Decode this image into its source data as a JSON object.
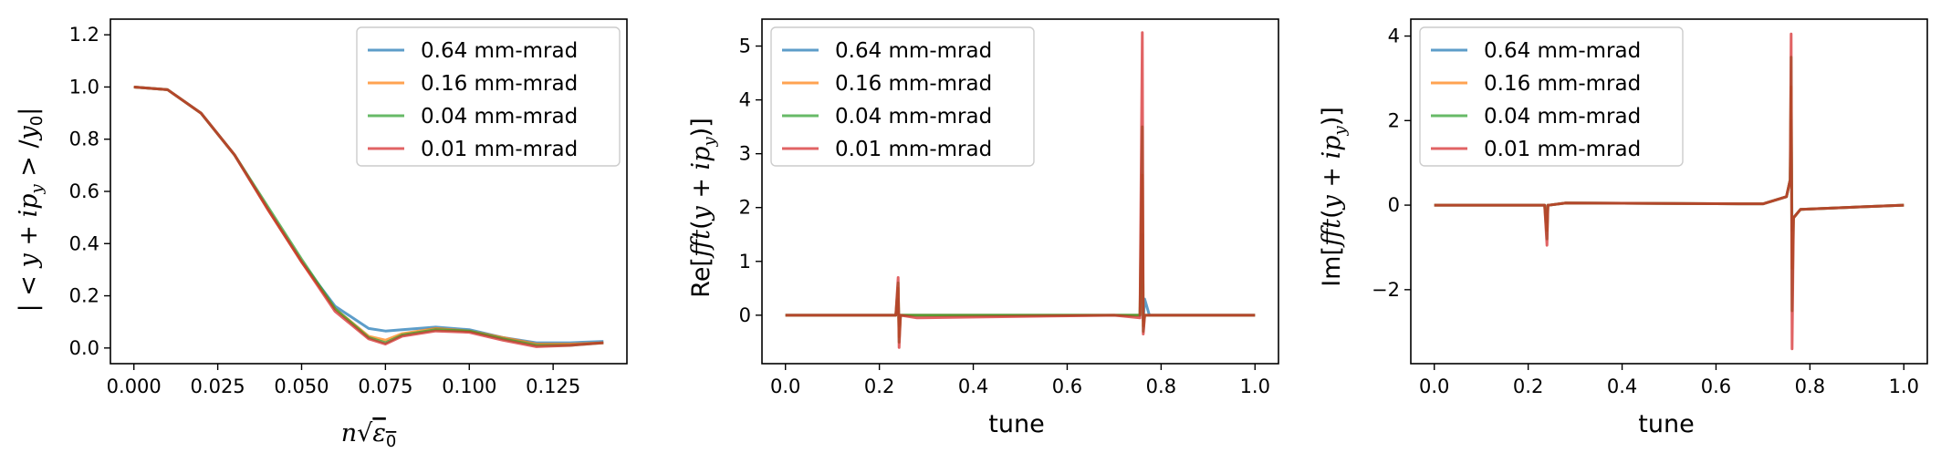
{
  "colors": {
    "blue": "#1f77b4",
    "orange": "#ff7f0e",
    "green": "#2ca02c",
    "red": "#d62728"
  },
  "chart_data": [
    {
      "type": "line",
      "xlabel": "n√ε0",
      "ylabel": "|<y + ipy>/y0|",
      "xlim": [
        -0.007,
        0.147
      ],
      "ylim": [
        -0.06,
        1.26
      ],
      "xticks": [
        0.0,
        0.025,
        0.05,
        0.075,
        0.1,
        0.125
      ],
      "xtick_labels": [
        "0.000",
        "0.025",
        "0.050",
        "0.075",
        "0.100",
        "0.125"
      ],
      "yticks": [
        0.0,
        0.2,
        0.4,
        0.6,
        0.8,
        1.0,
        1.2
      ],
      "ytick_labels": [
        "0.0",
        "0.2",
        "0.4",
        "0.6",
        "0.8",
        "1.0",
        "1.2"
      ],
      "legend_position": "top-right",
      "series": [
        {
          "name": "0.64 mm-mrad",
          "color": "#1f77b4",
          "x": [
            0.0,
            0.01,
            0.02,
            0.03,
            0.04,
            0.05,
            0.06,
            0.07,
            0.075,
            0.08,
            0.09,
            0.1,
            0.11,
            0.12,
            0.13,
            0.14
          ],
          "y": [
            1.0,
            0.99,
            0.9,
            0.74,
            0.53,
            0.33,
            0.16,
            0.075,
            0.065,
            0.07,
            0.08,
            0.07,
            0.04,
            0.02,
            0.02,
            0.025
          ]
        },
        {
          "name": "0.16 mm-mrad",
          "color": "#ff7f0e",
          "x": [
            0.0,
            0.01,
            0.02,
            0.03,
            0.04,
            0.05,
            0.06,
            0.07,
            0.075,
            0.08,
            0.09,
            0.1,
            0.11,
            0.12,
            0.13,
            0.14
          ],
          "y": [
            1.0,
            0.99,
            0.9,
            0.74,
            0.53,
            0.33,
            0.15,
            0.045,
            0.03,
            0.055,
            0.075,
            0.065,
            0.04,
            0.015,
            0.015,
            0.02
          ]
        },
        {
          "name": "0.04 mm-mrad",
          "color": "#2ca02c",
          "x": [
            0.0,
            0.01,
            0.02,
            0.03,
            0.04,
            0.05,
            0.06,
            0.07,
            0.075,
            0.08,
            0.09,
            0.1,
            0.11,
            0.12,
            0.13,
            0.14
          ],
          "y": [
            1.0,
            0.99,
            0.9,
            0.74,
            0.54,
            0.34,
            0.15,
            0.04,
            0.02,
            0.05,
            0.07,
            0.065,
            0.035,
            0.01,
            0.01,
            0.02
          ]
        },
        {
          "name": "0.01 mm-mrad",
          "color": "#d62728",
          "x": [
            0.0,
            0.01,
            0.02,
            0.03,
            0.04,
            0.05,
            0.06,
            0.07,
            0.075,
            0.08,
            0.09,
            0.1,
            0.11,
            0.12,
            0.13,
            0.14
          ],
          "y": [
            1.0,
            0.99,
            0.9,
            0.74,
            0.53,
            0.33,
            0.14,
            0.035,
            0.015,
            0.045,
            0.065,
            0.06,
            0.03,
            0.005,
            0.01,
            0.02
          ]
        }
      ]
    },
    {
      "type": "line",
      "xlabel": "tune",
      "ylabel": "Re[fft(y + ipy)]",
      "xlim": [
        -0.05,
        1.05
      ],
      "ylim": [
        -0.9,
        5.5
      ],
      "xticks": [
        0.0,
        0.2,
        0.4,
        0.6,
        0.8,
        1.0
      ],
      "xtick_labels": [
        "0.0",
        "0.2",
        "0.4",
        "0.6",
        "0.8",
        "1.0"
      ],
      "yticks": [
        0,
        1,
        2,
        3,
        4,
        5
      ],
      "ytick_labels": [
        "0",
        "1",
        "2",
        "3",
        "4",
        "5"
      ],
      "legend_position": "top-left",
      "series": [
        {
          "name": "0.64 mm-mrad",
          "color": "#1f77b4",
          "x": [
            0.0,
            0.235,
            0.24,
            0.242,
            0.245,
            0.28,
            0.7,
            0.755,
            0.76,
            0.762,
            0.765,
            0.775,
            1.0
          ],
          "y": [
            0.0,
            0.0,
            0.3,
            -0.2,
            0.0,
            0.0,
            0.0,
            0.0,
            1.5,
            -0.1,
            0.3,
            0.0,
            0.0
          ]
        },
        {
          "name": "0.16 mm-mrad",
          "color": "#ff7f0e",
          "x": [
            0.0,
            0.235,
            0.24,
            0.242,
            0.245,
            0.28,
            0.7,
            0.755,
            0.76,
            0.762,
            0.765,
            0.775,
            1.0
          ],
          "y": [
            0.0,
            0.0,
            0.5,
            -0.4,
            0.0,
            0.0,
            0.0,
            0.0,
            2.6,
            -0.2,
            0.0,
            0.0,
            0.0
          ]
        },
        {
          "name": "0.04 mm-mrad",
          "color": "#2ca02c",
          "x": [
            0.0,
            0.235,
            0.24,
            0.242,
            0.245,
            0.28,
            0.7,
            0.755,
            0.76,
            0.762,
            0.765,
            0.775,
            1.0
          ],
          "y": [
            0.0,
            0.0,
            0.6,
            -0.5,
            0.0,
            0.0,
            0.0,
            0.0,
            3.5,
            -0.3,
            0.0,
            0.0,
            0.0
          ]
        },
        {
          "name": "0.01 mm-mrad",
          "color": "#d62728",
          "x": [
            0.0,
            0.235,
            0.24,
            0.242,
            0.245,
            0.28,
            0.7,
            0.755,
            0.76,
            0.762,
            0.765,
            0.775,
            1.0
          ],
          "y": [
            0.0,
            0.0,
            0.7,
            -0.6,
            0.0,
            -0.05,
            0.0,
            -0.05,
            5.25,
            -0.35,
            0.0,
            0.0,
            0.0
          ]
        }
      ]
    },
    {
      "type": "line",
      "xlabel": "tune",
      "ylabel": "Im[fft(y + ipy)]",
      "xlim": [
        -0.05,
        1.05
      ],
      "ylim": [
        -3.75,
        4.4
      ],
      "xticks": [
        0.0,
        0.2,
        0.4,
        0.6,
        0.8,
        1.0
      ],
      "xtick_labels": [
        "0.0",
        "0.2",
        "0.4",
        "0.6",
        "0.8",
        "1.0"
      ],
      "yticks": [
        -2,
        0,
        2,
        4
      ],
      "ytick_labels": [
        "−2",
        "0",
        "2",
        "4"
      ],
      "legend_position": "top-left",
      "series": [
        {
          "name": "0.64 mm-mrad",
          "color": "#1f77b4",
          "x": [
            0.0,
            0.235,
            0.24,
            0.242,
            0.245,
            0.28,
            0.7,
            0.75,
            0.758,
            0.76,
            0.762,
            0.765,
            0.78,
            1.0
          ],
          "y": [
            0.0,
            0.0,
            -0.4,
            0.0,
            0.0,
            0.05,
            0.03,
            0.2,
            0.6,
            2.0,
            -0.6,
            -0.3,
            -0.1,
            0.0
          ]
        },
        {
          "name": "0.16 mm-mrad",
          "color": "#ff7f0e",
          "x": [
            0.0,
            0.235,
            0.24,
            0.242,
            0.245,
            0.28,
            0.7,
            0.75,
            0.758,
            0.76,
            0.762,
            0.765,
            0.78,
            1.0
          ],
          "y": [
            0.0,
            0.0,
            -0.6,
            0.0,
            0.0,
            0.05,
            0.03,
            0.2,
            0.6,
            2.8,
            -1.5,
            -0.3,
            -0.1,
            0.0
          ]
        },
        {
          "name": "0.04 mm-mrad",
          "color": "#2ca02c",
          "x": [
            0.0,
            0.235,
            0.24,
            0.242,
            0.245,
            0.28,
            0.7,
            0.75,
            0.758,
            0.76,
            0.762,
            0.765,
            0.78,
            1.0
          ],
          "y": [
            0.0,
            0.0,
            -0.8,
            0.0,
            0.0,
            0.05,
            0.03,
            0.2,
            0.6,
            3.5,
            -2.5,
            -0.3,
            -0.1,
            0.0
          ]
        },
        {
          "name": "0.01 mm-mrad",
          "color": "#d62728",
          "x": [
            0.0,
            0.235,
            0.24,
            0.242,
            0.245,
            0.28,
            0.7,
            0.75,
            0.758,
            0.76,
            0.762,
            0.765,
            0.78,
            1.0
          ],
          "y": [
            0.0,
            0.0,
            -0.95,
            0.0,
            0.0,
            0.05,
            0.03,
            0.2,
            0.6,
            4.05,
            -3.4,
            -0.3,
            -0.1,
            0.0
          ]
        }
      ]
    }
  ]
}
